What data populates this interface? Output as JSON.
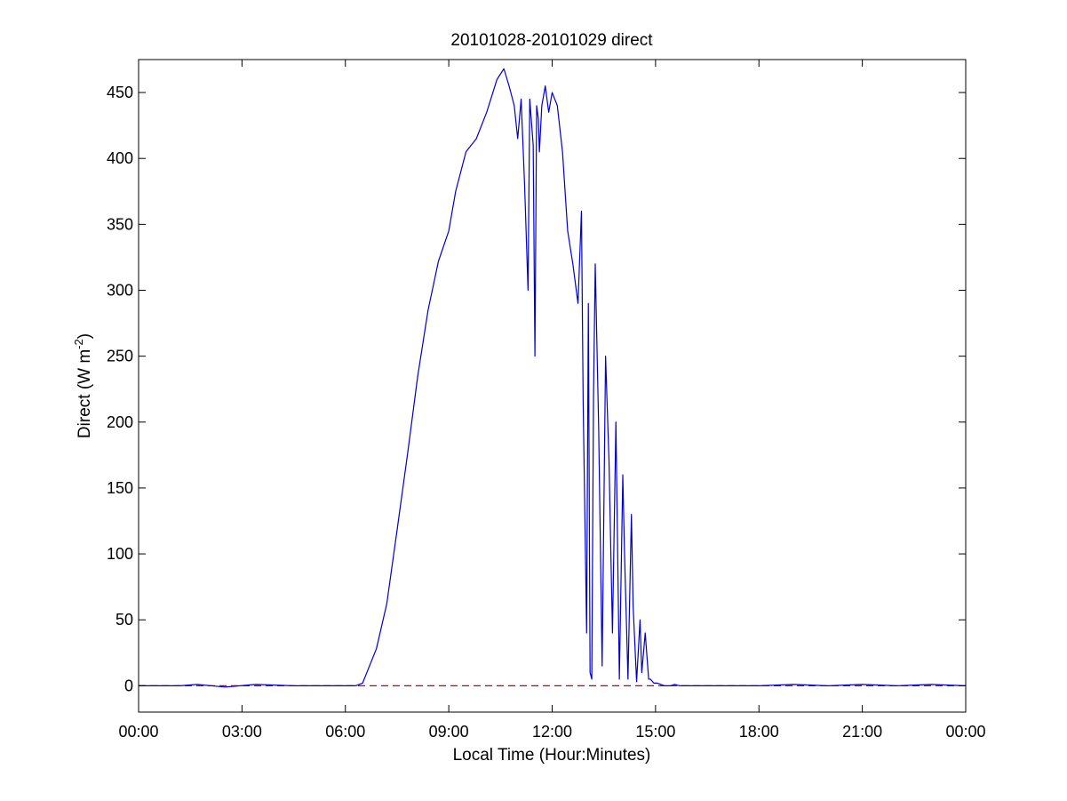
{
  "chart_data": {
    "type": "line",
    "title": "20101028-20101029 direct",
    "xlabel": "Local Time (Hour:Minutes)",
    "ylabel_main": "Direct (W m",
    "ylabel_sup": "-2",
    "ylabel_close": ")",
    "xlim": [
      0,
      24
    ],
    "ylim": [
      -20,
      475
    ],
    "xtick_values": [
      0,
      3,
      6,
      9,
      12,
      15,
      18,
      21,
      24
    ],
    "xtick_labels": [
      "00:00",
      "03:00",
      "06:00",
      "09:00",
      "12:00",
      "15:00",
      "18:00",
      "21:00",
      "00:00"
    ],
    "ytick_values": [
      0,
      50,
      100,
      150,
      200,
      250,
      300,
      350,
      400,
      450
    ],
    "ytick_labels": [
      "0",
      "50",
      "100",
      "150",
      "200",
      "250",
      "300",
      "350",
      "400",
      "450"
    ],
    "grid": false,
    "colors": {
      "series": "#0000cc",
      "reference": "#cc0000",
      "axes": "#000000"
    },
    "series": [
      {
        "x": [
          0,
          1.2,
          1.7,
          2.5,
          3.4,
          4.5,
          5.5,
          6.3,
          6.5,
          6.9,
          7.2,
          7.5,
          7.8,
          8.1,
          8.4,
          8.7,
          9.0,
          9.2,
          9.5,
          9.8,
          10.1,
          10.4,
          10.6,
          10.75,
          10.9,
          11.0,
          11.1,
          11.2,
          11.3,
          11.35,
          11.45,
          11.5,
          11.55,
          11.6,
          11.63,
          11.7,
          11.8,
          11.9,
          12.0,
          12.15,
          12.3,
          12.45,
          12.6,
          12.75,
          12.85,
          12.9,
          13.0,
          13.05,
          13.1,
          13.15,
          13.2,
          13.25,
          13.35,
          13.45,
          13.55,
          13.65,
          13.75,
          13.85,
          13.95,
          14.05,
          14.1,
          14.2,
          14.3,
          14.35,
          14.45,
          14.55,
          14.6,
          14.7,
          14.8,
          14.85,
          14.95,
          15.05,
          15.15,
          15.25,
          15.35,
          15.45,
          15.55,
          15.7,
          16.0,
          16.5,
          17.0,
          18.0,
          19.0,
          20.0,
          21.0,
          22.0,
          23.0,
          24.0
        ],
        "y": [
          0,
          0,
          1,
          -1,
          1,
          0,
          0,
          0,
          2,
          28,
          62,
          118,
          175,
          235,
          285,
          322,
          345,
          375,
          405,
          415,
          435,
          460,
          468,
          455,
          440,
          415,
          445,
          380,
          300,
          445,
          410,
          250,
          440,
          430,
          405,
          440,
          455,
          435,
          450,
          440,
          405,
          345,
          320,
          290,
          360,
          215,
          40,
          290,
          10,
          5,
          220,
          320,
          195,
          15,
          250,
          170,
          40,
          200,
          5,
          160,
          100,
          5,
          130,
          60,
          3,
          50,
          10,
          40,
          5,
          5,
          2,
          2,
          1,
          0,
          0,
          0,
          1,
          0,
          0,
          0,
          0,
          0,
          1,
          0,
          1,
          0,
          1,
          0
        ]
      },
      {
        "x": [
          0,
          24
        ],
        "y": [
          0,
          0
        ]
      }
    ]
  }
}
